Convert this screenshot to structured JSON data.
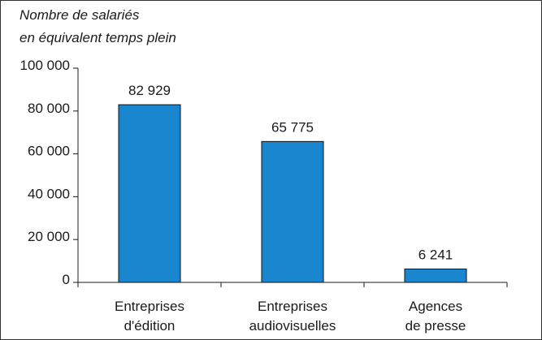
{
  "chart_data": {
    "type": "bar",
    "ylabel": [
      "Nombre de salariés",
      "en équivalent temps plein"
    ],
    "xlabel": "",
    "ylim": [
      0,
      100000
    ],
    "yticks": [
      {
        "value": 0,
        "label": "0"
      },
      {
        "value": 20000,
        "label": "20 000"
      },
      {
        "value": 40000,
        "label": "40 000"
      },
      {
        "value": 60000,
        "label": "60 000"
      },
      {
        "value": 80000,
        "label": "80 000"
      },
      {
        "value": 100000,
        "label": "100 000"
      }
    ],
    "categories": [
      [
        "Entreprises",
        "d'édition"
      ],
      [
        "Entreprises",
        "audiovisuelles"
      ],
      [
        "Agences",
        "de presse"
      ]
    ],
    "values": [
      82929,
      65775,
      6241
    ],
    "value_labels": [
      "82 929",
      "65 775",
      "6 241"
    ],
    "bar_color": "#1a86d0",
    "bar_edge_color": "#111111",
    "grid": false,
    "legend": "none"
  }
}
